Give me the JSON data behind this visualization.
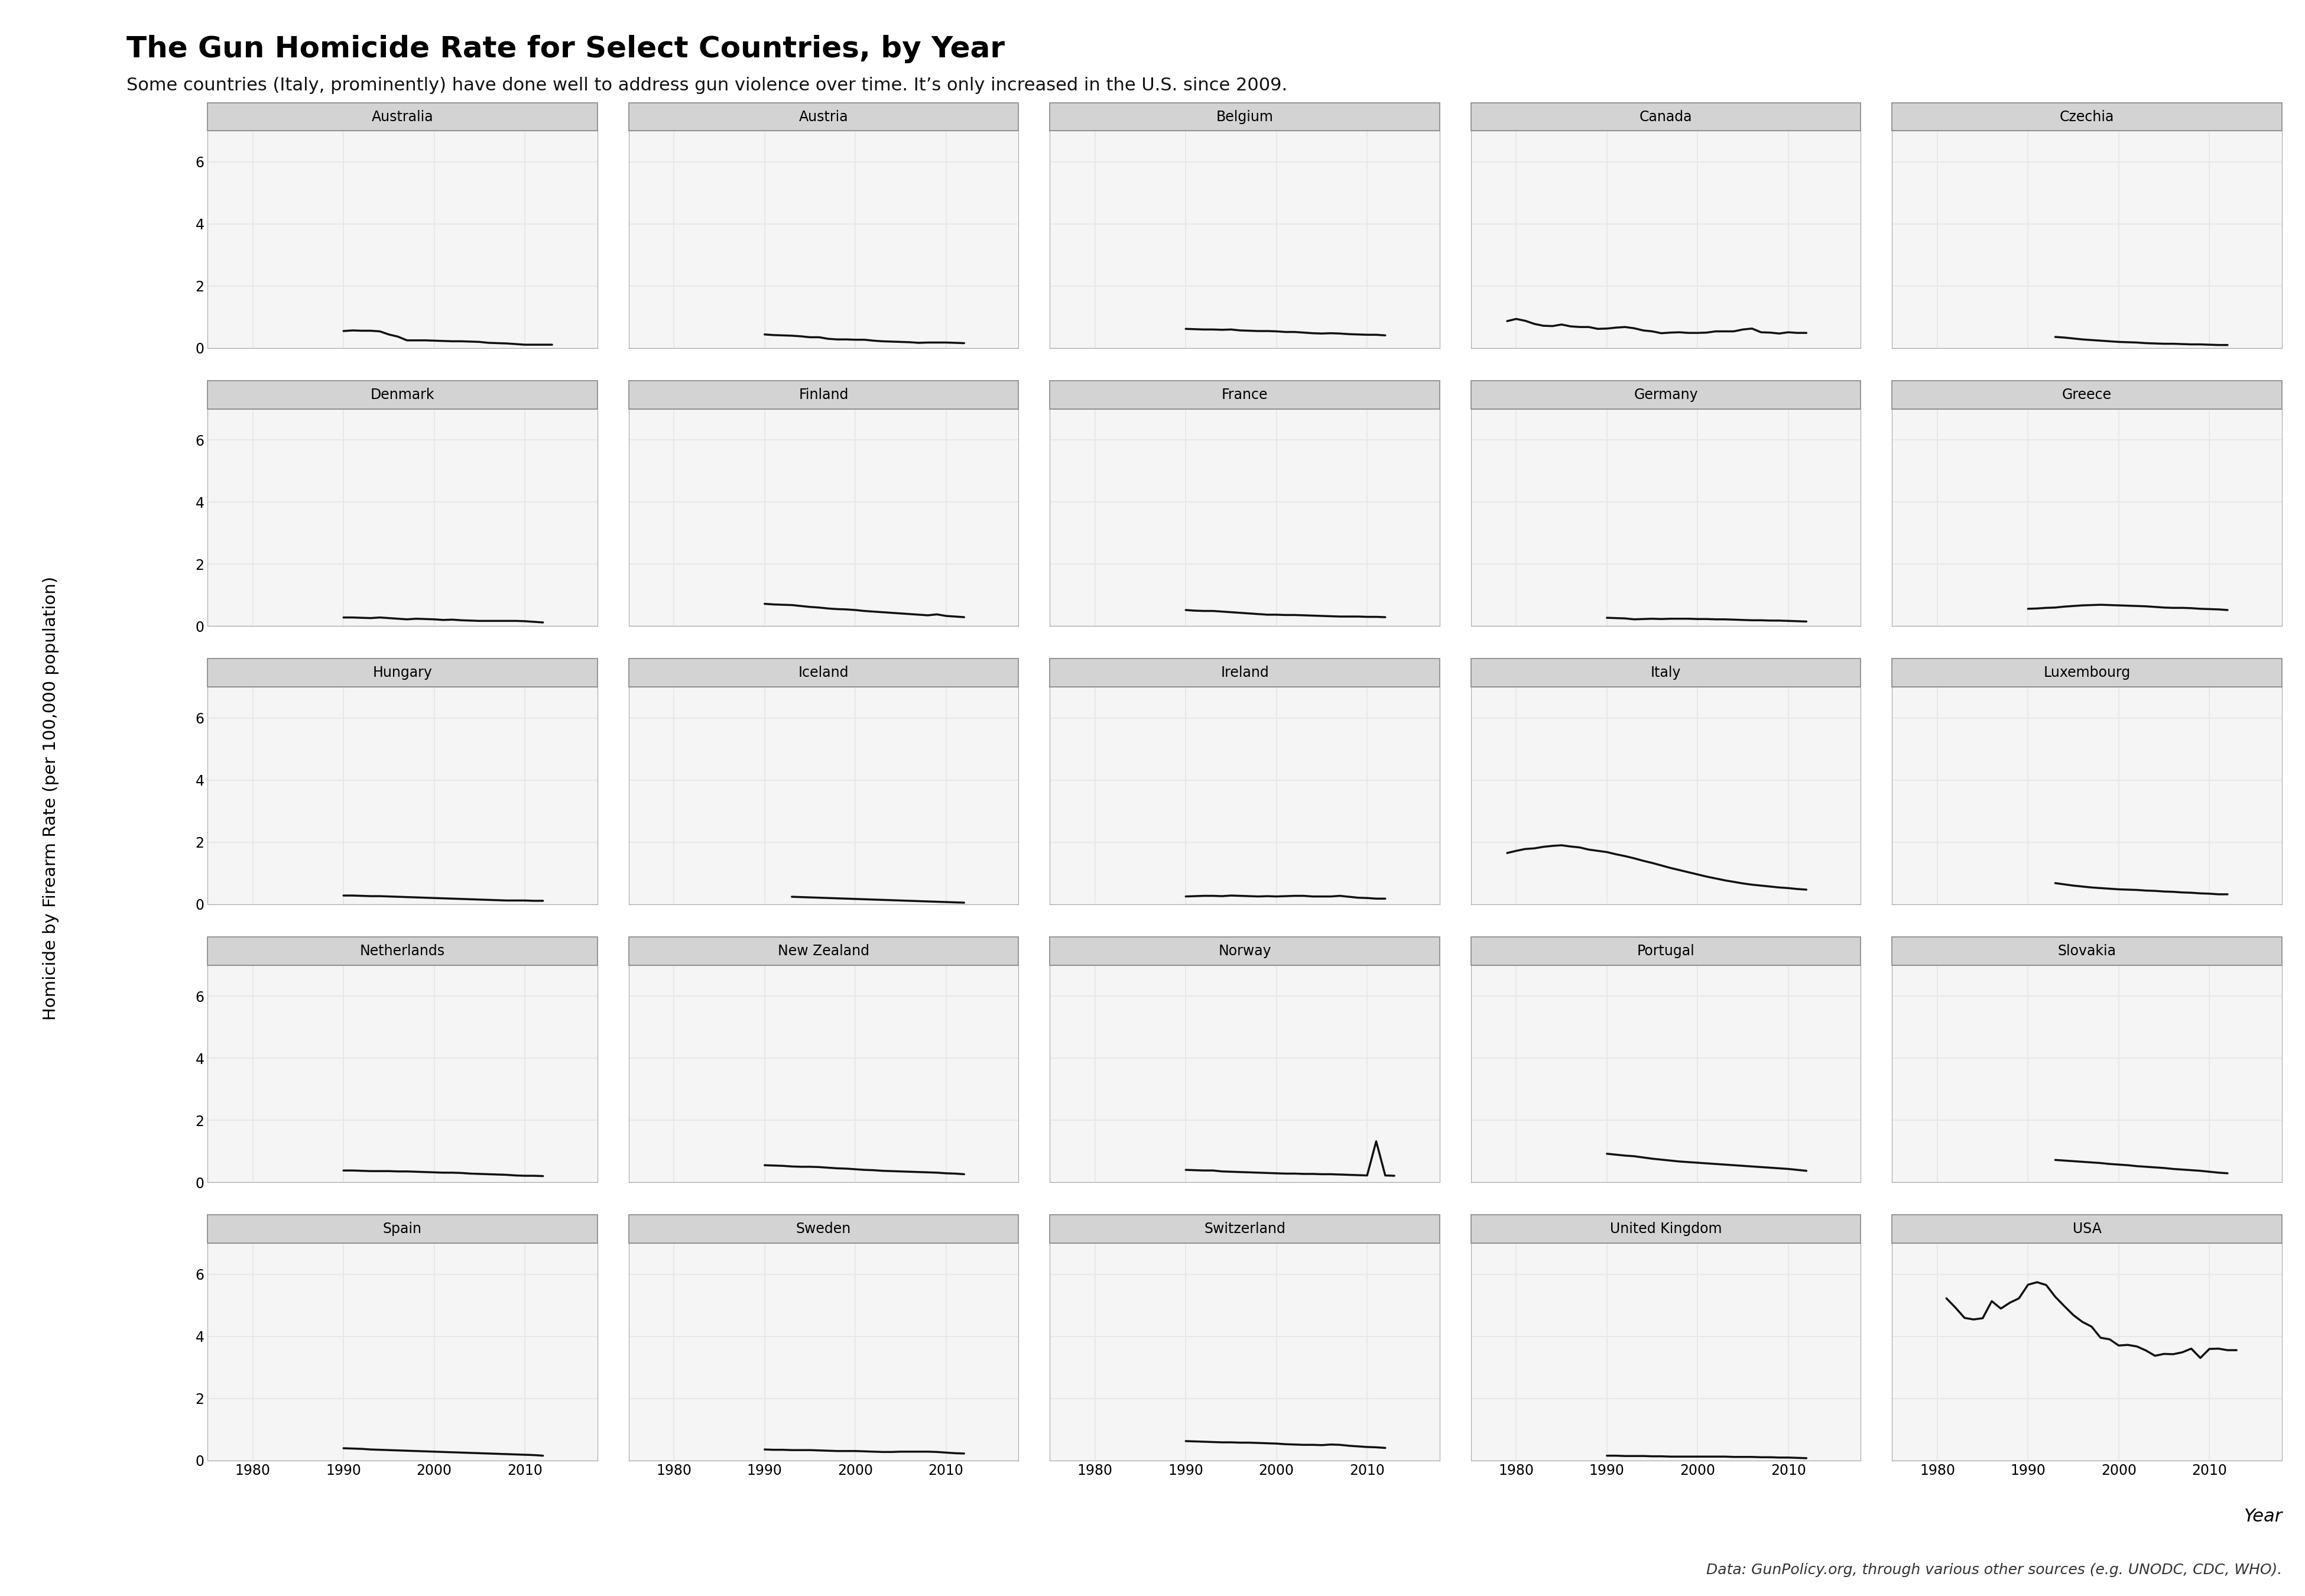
{
  "title": "The Gun Homicide Rate for Select Countries, by Year",
  "subtitle": "Some countries (Italy, prominently) have done well to address gun violence over time. It’s only increased in the U.S. since 2009.",
  "ylabel": "Homicide by Firearm Rate (per 100,000 population)",
  "xlabel": "Year",
  "caption": "Data: GunPolicy.org, through various other sources (e.g. UNODC, CDC, WHO).",
  "ylim": [
    0,
    7
  ],
  "yticks": [
    0,
    2,
    4,
    6
  ],
  "bg_color": "#ffffff",
  "panel_bg": "#f5f5f5",
  "strip_bg": "#d3d3d3",
  "strip_border": "#888888",
  "grid_color": "#e8e8e8",
  "line_color": "#111111",
  "countries": [
    "Australia",
    "Austria",
    "Belgium",
    "Canada",
    "Czechia",
    "Denmark",
    "Finland",
    "France",
    "Germany",
    "Greece",
    "Hungary",
    "Iceland",
    "Ireland",
    "Italy",
    "Luxembourg",
    "Netherlands",
    "New Zealand",
    "Norway",
    "Portugal",
    "Slovakia",
    "Spain",
    "Sweden",
    "Switzerland",
    "United Kingdom",
    "USA"
  ],
  "data": {
    "Australia": {
      "years": [
        1990,
        1991,
        1992,
        1993,
        1994,
        1995,
        1996,
        1997,
        1998,
        1999,
        2000,
        2001,
        2002,
        2003,
        2004,
        2005,
        2006,
        2007,
        2008,
        2009,
        2010,
        2011,
        2012,
        2013
      ],
      "values": [
        0.55,
        0.57,
        0.56,
        0.56,
        0.54,
        0.44,
        0.37,
        0.25,
        0.25,
        0.25,
        0.24,
        0.23,
        0.22,
        0.22,
        0.21,
        0.2,
        0.17,
        0.16,
        0.15,
        0.13,
        0.11,
        0.11,
        0.11,
        0.11
      ]
    },
    "Austria": {
      "years": [
        1990,
        1991,
        1992,
        1993,
        1994,
        1995,
        1996,
        1997,
        1998,
        1999,
        2000,
        2001,
        2002,
        2003,
        2004,
        2005,
        2006,
        2007,
        2008,
        2009,
        2010,
        2011,
        2012
      ],
      "values": [
        0.44,
        0.42,
        0.41,
        0.4,
        0.38,
        0.35,
        0.35,
        0.3,
        0.28,
        0.28,
        0.27,
        0.27,
        0.24,
        0.22,
        0.21,
        0.2,
        0.19,
        0.17,
        0.18,
        0.18,
        0.18,
        0.17,
        0.16
      ]
    },
    "Belgium": {
      "years": [
        1990,
        1991,
        1992,
        1993,
        1994,
        1995,
        1996,
        1997,
        1998,
        1999,
        2000,
        2001,
        2002,
        2003,
        2004,
        2005,
        2006,
        2007,
        2008,
        2009,
        2010,
        2011,
        2012
      ],
      "values": [
        0.62,
        0.61,
        0.6,
        0.6,
        0.59,
        0.6,
        0.57,
        0.56,
        0.55,
        0.55,
        0.54,
        0.52,
        0.52,
        0.5,
        0.48,
        0.47,
        0.48,
        0.47,
        0.45,
        0.44,
        0.43,
        0.43,
        0.41
      ]
    },
    "Canada": {
      "years": [
        1979,
        1980,
        1981,
        1982,
        1983,
        1984,
        1985,
        1986,
        1987,
        1988,
        1989,
        1990,
        1991,
        1992,
        1993,
        1994,
        1995,
        1996,
        1997,
        1998,
        1999,
        2000,
        2001,
        2002,
        2003,
        2004,
        2005,
        2006,
        2007,
        2008,
        2009,
        2010,
        2011,
        2012
      ],
      "values": [
        0.87,
        0.94,
        0.88,
        0.78,
        0.72,
        0.71,
        0.76,
        0.7,
        0.68,
        0.68,
        0.62,
        0.63,
        0.66,
        0.68,
        0.64,
        0.57,
        0.54,
        0.48,
        0.5,
        0.51,
        0.49,
        0.49,
        0.5,
        0.54,
        0.54,
        0.54,
        0.6,
        0.63,
        0.51,
        0.5,
        0.47,
        0.51,
        0.49,
        0.49
      ]
    },
    "Czechia": {
      "years": [
        1993,
        1994,
        1995,
        1996,
        1997,
        1998,
        1999,
        2000,
        2001,
        2002,
        2003,
        2004,
        2005,
        2006,
        2007,
        2008,
        2009,
        2010,
        2011,
        2012
      ],
      "values": [
        0.36,
        0.34,
        0.31,
        0.28,
        0.26,
        0.24,
        0.22,
        0.2,
        0.19,
        0.18,
        0.16,
        0.15,
        0.14,
        0.14,
        0.13,
        0.12,
        0.12,
        0.11,
        0.1,
        0.1
      ]
    },
    "Denmark": {
      "years": [
        1990,
        1991,
        1992,
        1993,
        1994,
        1995,
        1996,
        1997,
        1998,
        1999,
        2000,
        2001,
        2002,
        2003,
        2004,
        2005,
        2006,
        2007,
        2008,
        2009,
        2010,
        2011,
        2012
      ],
      "values": [
        0.28,
        0.28,
        0.27,
        0.26,
        0.28,
        0.26,
        0.24,
        0.22,
        0.24,
        0.23,
        0.22,
        0.2,
        0.21,
        0.19,
        0.18,
        0.17,
        0.17,
        0.17,
        0.17,
        0.17,
        0.16,
        0.14,
        0.12
      ]
    },
    "Finland": {
      "years": [
        1990,
        1991,
        1992,
        1993,
        1994,
        1995,
        1996,
        1997,
        1998,
        1999,
        2000,
        2001,
        2002,
        2003,
        2004,
        2005,
        2006,
        2007,
        2008,
        2009,
        2010,
        2011,
        2012
      ],
      "values": [
        0.72,
        0.7,
        0.69,
        0.68,
        0.65,
        0.62,
        0.6,
        0.57,
        0.55,
        0.54,
        0.52,
        0.49,
        0.47,
        0.45,
        0.43,
        0.41,
        0.39,
        0.37,
        0.35,
        0.38,
        0.33,
        0.31,
        0.29
      ]
    },
    "France": {
      "years": [
        1990,
        1991,
        1992,
        1993,
        1994,
        1995,
        1996,
        1997,
        1998,
        1999,
        2000,
        2001,
        2002,
        2003,
        2004,
        2005,
        2006,
        2007,
        2008,
        2009,
        2010,
        2011,
        2012
      ],
      "values": [
        0.52,
        0.5,
        0.49,
        0.49,
        0.47,
        0.45,
        0.43,
        0.41,
        0.39,
        0.37,
        0.37,
        0.36,
        0.36,
        0.35,
        0.34,
        0.33,
        0.32,
        0.31,
        0.31,
        0.31,
        0.3,
        0.3,
        0.29
      ]
    },
    "Germany": {
      "years": [
        1990,
        1991,
        1992,
        1993,
        1994,
        1995,
        1996,
        1997,
        1998,
        1999,
        2000,
        2001,
        2002,
        2003,
        2004,
        2005,
        2006,
        2007,
        2008,
        2009,
        2010,
        2011,
        2012
      ],
      "values": [
        0.27,
        0.26,
        0.25,
        0.22,
        0.23,
        0.24,
        0.23,
        0.24,
        0.24,
        0.24,
        0.23,
        0.23,
        0.22,
        0.22,
        0.21,
        0.2,
        0.19,
        0.19,
        0.18,
        0.18,
        0.17,
        0.16,
        0.15
      ]
    },
    "Greece": {
      "years": [
        1990,
        1991,
        1992,
        1993,
        1994,
        1995,
        1996,
        1997,
        1998,
        1999,
        2000,
        2001,
        2002,
        2003,
        2004,
        2005,
        2006,
        2007,
        2008,
        2009,
        2010,
        2011,
        2012
      ],
      "values": [
        0.56,
        0.57,
        0.59,
        0.6,
        0.63,
        0.65,
        0.67,
        0.68,
        0.69,
        0.68,
        0.67,
        0.66,
        0.65,
        0.64,
        0.62,
        0.6,
        0.59,
        0.59,
        0.58,
        0.56,
        0.55,
        0.54,
        0.52
      ]
    },
    "Hungary": {
      "years": [
        1990,
        1991,
        1992,
        1993,
        1994,
        1995,
        1996,
        1997,
        1998,
        1999,
        2000,
        2001,
        2002,
        2003,
        2004,
        2005,
        2006,
        2007,
        2008,
        2009,
        2010,
        2011,
        2012
      ],
      "values": [
        0.28,
        0.28,
        0.27,
        0.26,
        0.26,
        0.25,
        0.24,
        0.23,
        0.22,
        0.21,
        0.2,
        0.19,
        0.18,
        0.17,
        0.16,
        0.15,
        0.14,
        0.13,
        0.12,
        0.12,
        0.12,
        0.11,
        0.11
      ]
    },
    "Iceland": {
      "years": [
        1993,
        1994,
        1995,
        1996,
        1997,
        1998,
        1999,
        2000,
        2001,
        2002,
        2003,
        2004,
        2005,
        2006,
        2007,
        2008,
        2009,
        2010,
        2011,
        2012
      ],
      "values": [
        0.24,
        0.23,
        0.22,
        0.21,
        0.2,
        0.19,
        0.18,
        0.17,
        0.16,
        0.15,
        0.14,
        0.13,
        0.12,
        0.11,
        0.1,
        0.09,
        0.08,
        0.07,
        0.06,
        0.05
      ]
    },
    "Ireland": {
      "years": [
        1990,
        1991,
        1992,
        1993,
        1994,
        1995,
        1996,
        1997,
        1998,
        1999,
        2000,
        2001,
        2002,
        2003,
        2004,
        2005,
        2006,
        2007,
        2008,
        2009,
        2010,
        2011,
        2012
      ],
      "values": [
        0.25,
        0.26,
        0.27,
        0.27,
        0.26,
        0.28,
        0.27,
        0.26,
        0.25,
        0.26,
        0.25,
        0.26,
        0.27,
        0.27,
        0.25,
        0.25,
        0.25,
        0.27,
        0.24,
        0.21,
        0.2,
        0.18,
        0.18
      ]
    },
    "Italy": {
      "years": [
        1979,
        1980,
        1981,
        1982,
        1983,
        1984,
        1985,
        1986,
        1987,
        1988,
        1989,
        1990,
        1991,
        1992,
        1993,
        1994,
        1995,
        1996,
        1997,
        1998,
        1999,
        2000,
        2001,
        2002,
        2003,
        2004,
        2005,
        2006,
        2007,
        2008,
        2009,
        2010,
        2011,
        2012
      ],
      "values": [
        1.65,
        1.72,
        1.78,
        1.8,
        1.85,
        1.88,
        1.9,
        1.86,
        1.83,
        1.76,
        1.72,
        1.68,
        1.61,
        1.55,
        1.48,
        1.4,
        1.33,
        1.25,
        1.17,
        1.1,
        1.03,
        0.96,
        0.89,
        0.83,
        0.77,
        0.72,
        0.67,
        0.63,
        0.6,
        0.57,
        0.54,
        0.52,
        0.49,
        0.47
      ]
    },
    "Luxembourg": {
      "years": [
        1993,
        1994,
        1995,
        1996,
        1997,
        1998,
        1999,
        2000,
        2001,
        2002,
        2003,
        2004,
        2005,
        2006,
        2007,
        2008,
        2009,
        2010,
        2011,
        2012
      ],
      "values": [
        0.68,
        0.64,
        0.6,
        0.57,
        0.54,
        0.52,
        0.5,
        0.48,
        0.47,
        0.46,
        0.44,
        0.43,
        0.41,
        0.4,
        0.38,
        0.37,
        0.35,
        0.34,
        0.32,
        0.32
      ]
    },
    "Netherlands": {
      "years": [
        1990,
        1991,
        1992,
        1993,
        1994,
        1995,
        1996,
        1997,
        1998,
        1999,
        2000,
        2001,
        2002,
        2003,
        2004,
        2005,
        2006,
        2007,
        2008,
        2009,
        2010,
        2011,
        2012
      ],
      "values": [
        0.38,
        0.38,
        0.37,
        0.36,
        0.36,
        0.36,
        0.35,
        0.35,
        0.34,
        0.33,
        0.32,
        0.31,
        0.31,
        0.3,
        0.28,
        0.27,
        0.26,
        0.25,
        0.24,
        0.22,
        0.21,
        0.21,
        0.2
      ]
    },
    "New Zealand": {
      "years": [
        1990,
        1991,
        1992,
        1993,
        1994,
        1995,
        1996,
        1997,
        1998,
        1999,
        2000,
        2001,
        2002,
        2003,
        2004,
        2005,
        2006,
        2007,
        2008,
        2009,
        2010,
        2011,
        2012
      ],
      "values": [
        0.55,
        0.54,
        0.53,
        0.51,
        0.5,
        0.5,
        0.49,
        0.47,
        0.45,
        0.44,
        0.42,
        0.4,
        0.39,
        0.37,
        0.36,
        0.35,
        0.34,
        0.33,
        0.32,
        0.31,
        0.29,
        0.28,
        0.26
      ]
    },
    "Norway": {
      "years": [
        1990,
        1991,
        1992,
        1993,
        1994,
        1995,
        1996,
        1997,
        1998,
        1999,
        2000,
        2001,
        2002,
        2003,
        2004,
        2005,
        2006,
        2007,
        2008,
        2009,
        2010,
        2011,
        2012,
        2013
      ],
      "values": [
        0.4,
        0.39,
        0.38,
        0.38,
        0.35,
        0.34,
        0.33,
        0.32,
        0.31,
        0.3,
        0.29,
        0.28,
        0.28,
        0.27,
        0.27,
        0.26,
        0.26,
        0.25,
        0.24,
        0.23,
        0.22,
        1.32,
        0.22,
        0.21
      ]
    },
    "Portugal": {
      "years": [
        1990,
        1991,
        1992,
        1993,
        1994,
        1995,
        1996,
        1997,
        1998,
        1999,
        2000,
        2001,
        2002,
        2003,
        2004,
        2005,
        2006,
        2007,
        2008,
        2009,
        2010,
        2011,
        2012
      ],
      "values": [
        0.92,
        0.89,
        0.86,
        0.84,
        0.8,
        0.76,
        0.73,
        0.7,
        0.67,
        0.65,
        0.63,
        0.61,
        0.59,
        0.57,
        0.55,
        0.53,
        0.51,
        0.49,
        0.47,
        0.45,
        0.43,
        0.4,
        0.37
      ]
    },
    "Slovakia": {
      "years": [
        1993,
        1994,
        1995,
        1996,
        1997,
        1998,
        1999,
        2000,
        2001,
        2002,
        2003,
        2004,
        2005,
        2006,
        2007,
        2008,
        2009,
        2010,
        2011,
        2012
      ],
      "values": [
        0.72,
        0.7,
        0.68,
        0.66,
        0.64,
        0.62,
        0.59,
        0.57,
        0.55,
        0.52,
        0.5,
        0.48,
        0.46,
        0.43,
        0.41,
        0.39,
        0.37,
        0.34,
        0.31,
        0.29
      ]
    },
    "Spain": {
      "years": [
        1990,
        1991,
        1992,
        1993,
        1994,
        1995,
        1996,
        1997,
        1998,
        1999,
        2000,
        2001,
        2002,
        2003,
        2004,
        2005,
        2006,
        2007,
        2008,
        2009,
        2010,
        2011,
        2012
      ],
      "values": [
        0.39,
        0.38,
        0.37,
        0.35,
        0.34,
        0.33,
        0.32,
        0.31,
        0.3,
        0.29,
        0.28,
        0.27,
        0.26,
        0.25,
        0.24,
        0.23,
        0.22,
        0.21,
        0.2,
        0.19,
        0.18,
        0.17,
        0.15
      ]
    },
    "Sweden": {
      "years": [
        1990,
        1991,
        1992,
        1993,
        1994,
        1995,
        1996,
        1997,
        1998,
        1999,
        2000,
        2001,
        2002,
        2003,
        2004,
        2005,
        2006,
        2007,
        2008,
        2009,
        2010,
        2011,
        2012
      ],
      "values": [
        0.35,
        0.34,
        0.34,
        0.33,
        0.33,
        0.33,
        0.32,
        0.31,
        0.3,
        0.3,
        0.3,
        0.29,
        0.28,
        0.27,
        0.27,
        0.28,
        0.28,
        0.28,
        0.28,
        0.27,
        0.25,
        0.23,
        0.22
      ]
    },
    "Switzerland": {
      "years": [
        1990,
        1991,
        1992,
        1993,
        1994,
        1995,
        1996,
        1997,
        1998,
        1999,
        2000,
        2001,
        2002,
        2003,
        2004,
        2005,
        2006,
        2007,
        2008,
        2009,
        2010,
        2011,
        2012
      ],
      "values": [
        0.62,
        0.61,
        0.6,
        0.59,
        0.58,
        0.58,
        0.57,
        0.57,
        0.56,
        0.55,
        0.54,
        0.52,
        0.51,
        0.5,
        0.5,
        0.49,
        0.51,
        0.5,
        0.47,
        0.45,
        0.43,
        0.42,
        0.4
      ]
    },
    "United Kingdom": {
      "years": [
        1990,
        1991,
        1992,
        1993,
        1994,
        1995,
        1996,
        1997,
        1998,
        1999,
        2000,
        2001,
        2002,
        2003,
        2004,
        2005,
        2006,
        2007,
        2008,
        2009,
        2010,
        2011,
        2012
      ],
      "values": [
        0.15,
        0.15,
        0.14,
        0.14,
        0.14,
        0.13,
        0.13,
        0.12,
        0.12,
        0.12,
        0.12,
        0.12,
        0.12,
        0.12,
        0.11,
        0.11,
        0.11,
        0.1,
        0.1,
        0.09,
        0.09,
        0.08,
        0.07
      ]
    },
    "USA": {
      "years": [
        1981,
        1982,
        1983,
        1984,
        1985,
        1986,
        1987,
        1988,
        1989,
        1990,
        1991,
        1992,
        1993,
        1994,
        1995,
        1996,
        1997,
        1998,
        1999,
        2000,
        2001,
        2002,
        2003,
        2004,
        2005,
        2006,
        2007,
        2008,
        2009,
        2010,
        2011,
        2012,
        2013
      ],
      "values": [
        5.22,
        4.92,
        4.59,
        4.54,
        4.58,
        5.13,
        4.89,
        5.08,
        5.22,
        5.66,
        5.74,
        5.65,
        5.27,
        4.97,
        4.68,
        4.46,
        4.31,
        3.95,
        3.9,
        3.7,
        3.72,
        3.67,
        3.54,
        3.37,
        3.43,
        3.42,
        3.48,
        3.6,
        3.3,
        3.59,
        3.6,
        3.55,
        3.55
      ]
    }
  },
  "xmin": 1975,
  "xmax": 2018,
  "xticks": [
    1980,
    1990,
    2000,
    2010
  ]
}
